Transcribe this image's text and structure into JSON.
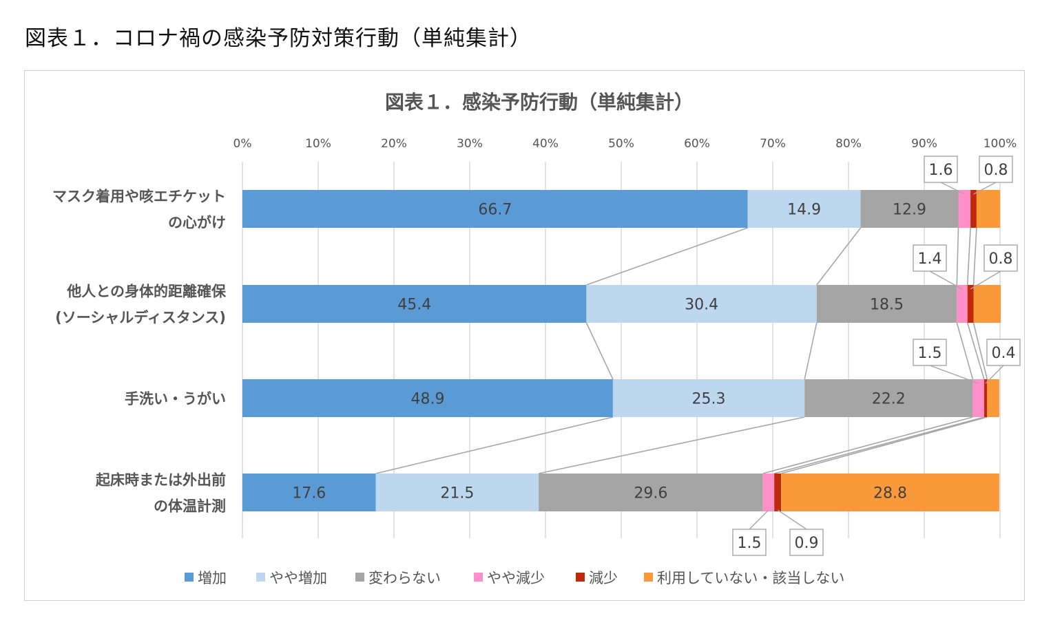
{
  "page": {
    "title": "図表１．コロナ禍の感染予防対策行動（単純集計）"
  },
  "chart_data": {
    "type": "bar",
    "stacked": true,
    "orientation": "horizontal",
    "title": "図表１．感染予防行動（単純集計）",
    "xlim": [
      0,
      100
    ],
    "x_ticks": [
      "0%",
      "10%",
      "20%",
      "30%",
      "40%",
      "50%",
      "60%",
      "70%",
      "80%",
      "90%",
      "100%"
    ],
    "legend_position": "bottom",
    "categories": [
      [
        "マスク着用や咳エチケット",
        "の心がけ"
      ],
      [
        "他人との身体的距離確保",
        "(ソーシャルディスタンス)"
      ],
      [
        "手洗い・うがい"
      ],
      [
        "起床時または外出前",
        "の体温計測"
      ]
    ],
    "series": [
      {
        "name": "増加",
        "color": "#5b9bd5",
        "values": [
          66.7,
          45.4,
          48.9,
          17.6
        ]
      },
      {
        "name": "やや増加",
        "color": "#bdd7ee",
        "values": [
          14.9,
          30.4,
          25.3,
          21.5
        ]
      },
      {
        "name": "変わらない",
        "color": "#a5a5a5",
        "values": [
          12.9,
          18.5,
          22.2,
          29.6
        ]
      },
      {
        "name": "やや減少",
        "color": "#ff8fc8",
        "values": [
          1.6,
          1.4,
          1.5,
          1.5
        ]
      },
      {
        "name": "減少",
        "color": "#c0280c",
        "values": [
          0.8,
          0.8,
          0.4,
          0.9
        ]
      },
      {
        "name": "利用していない・該当しない",
        "color": "#f9993a",
        "values": [
          3.1,
          3.6,
          1.6,
          28.8
        ]
      }
    ]
  }
}
